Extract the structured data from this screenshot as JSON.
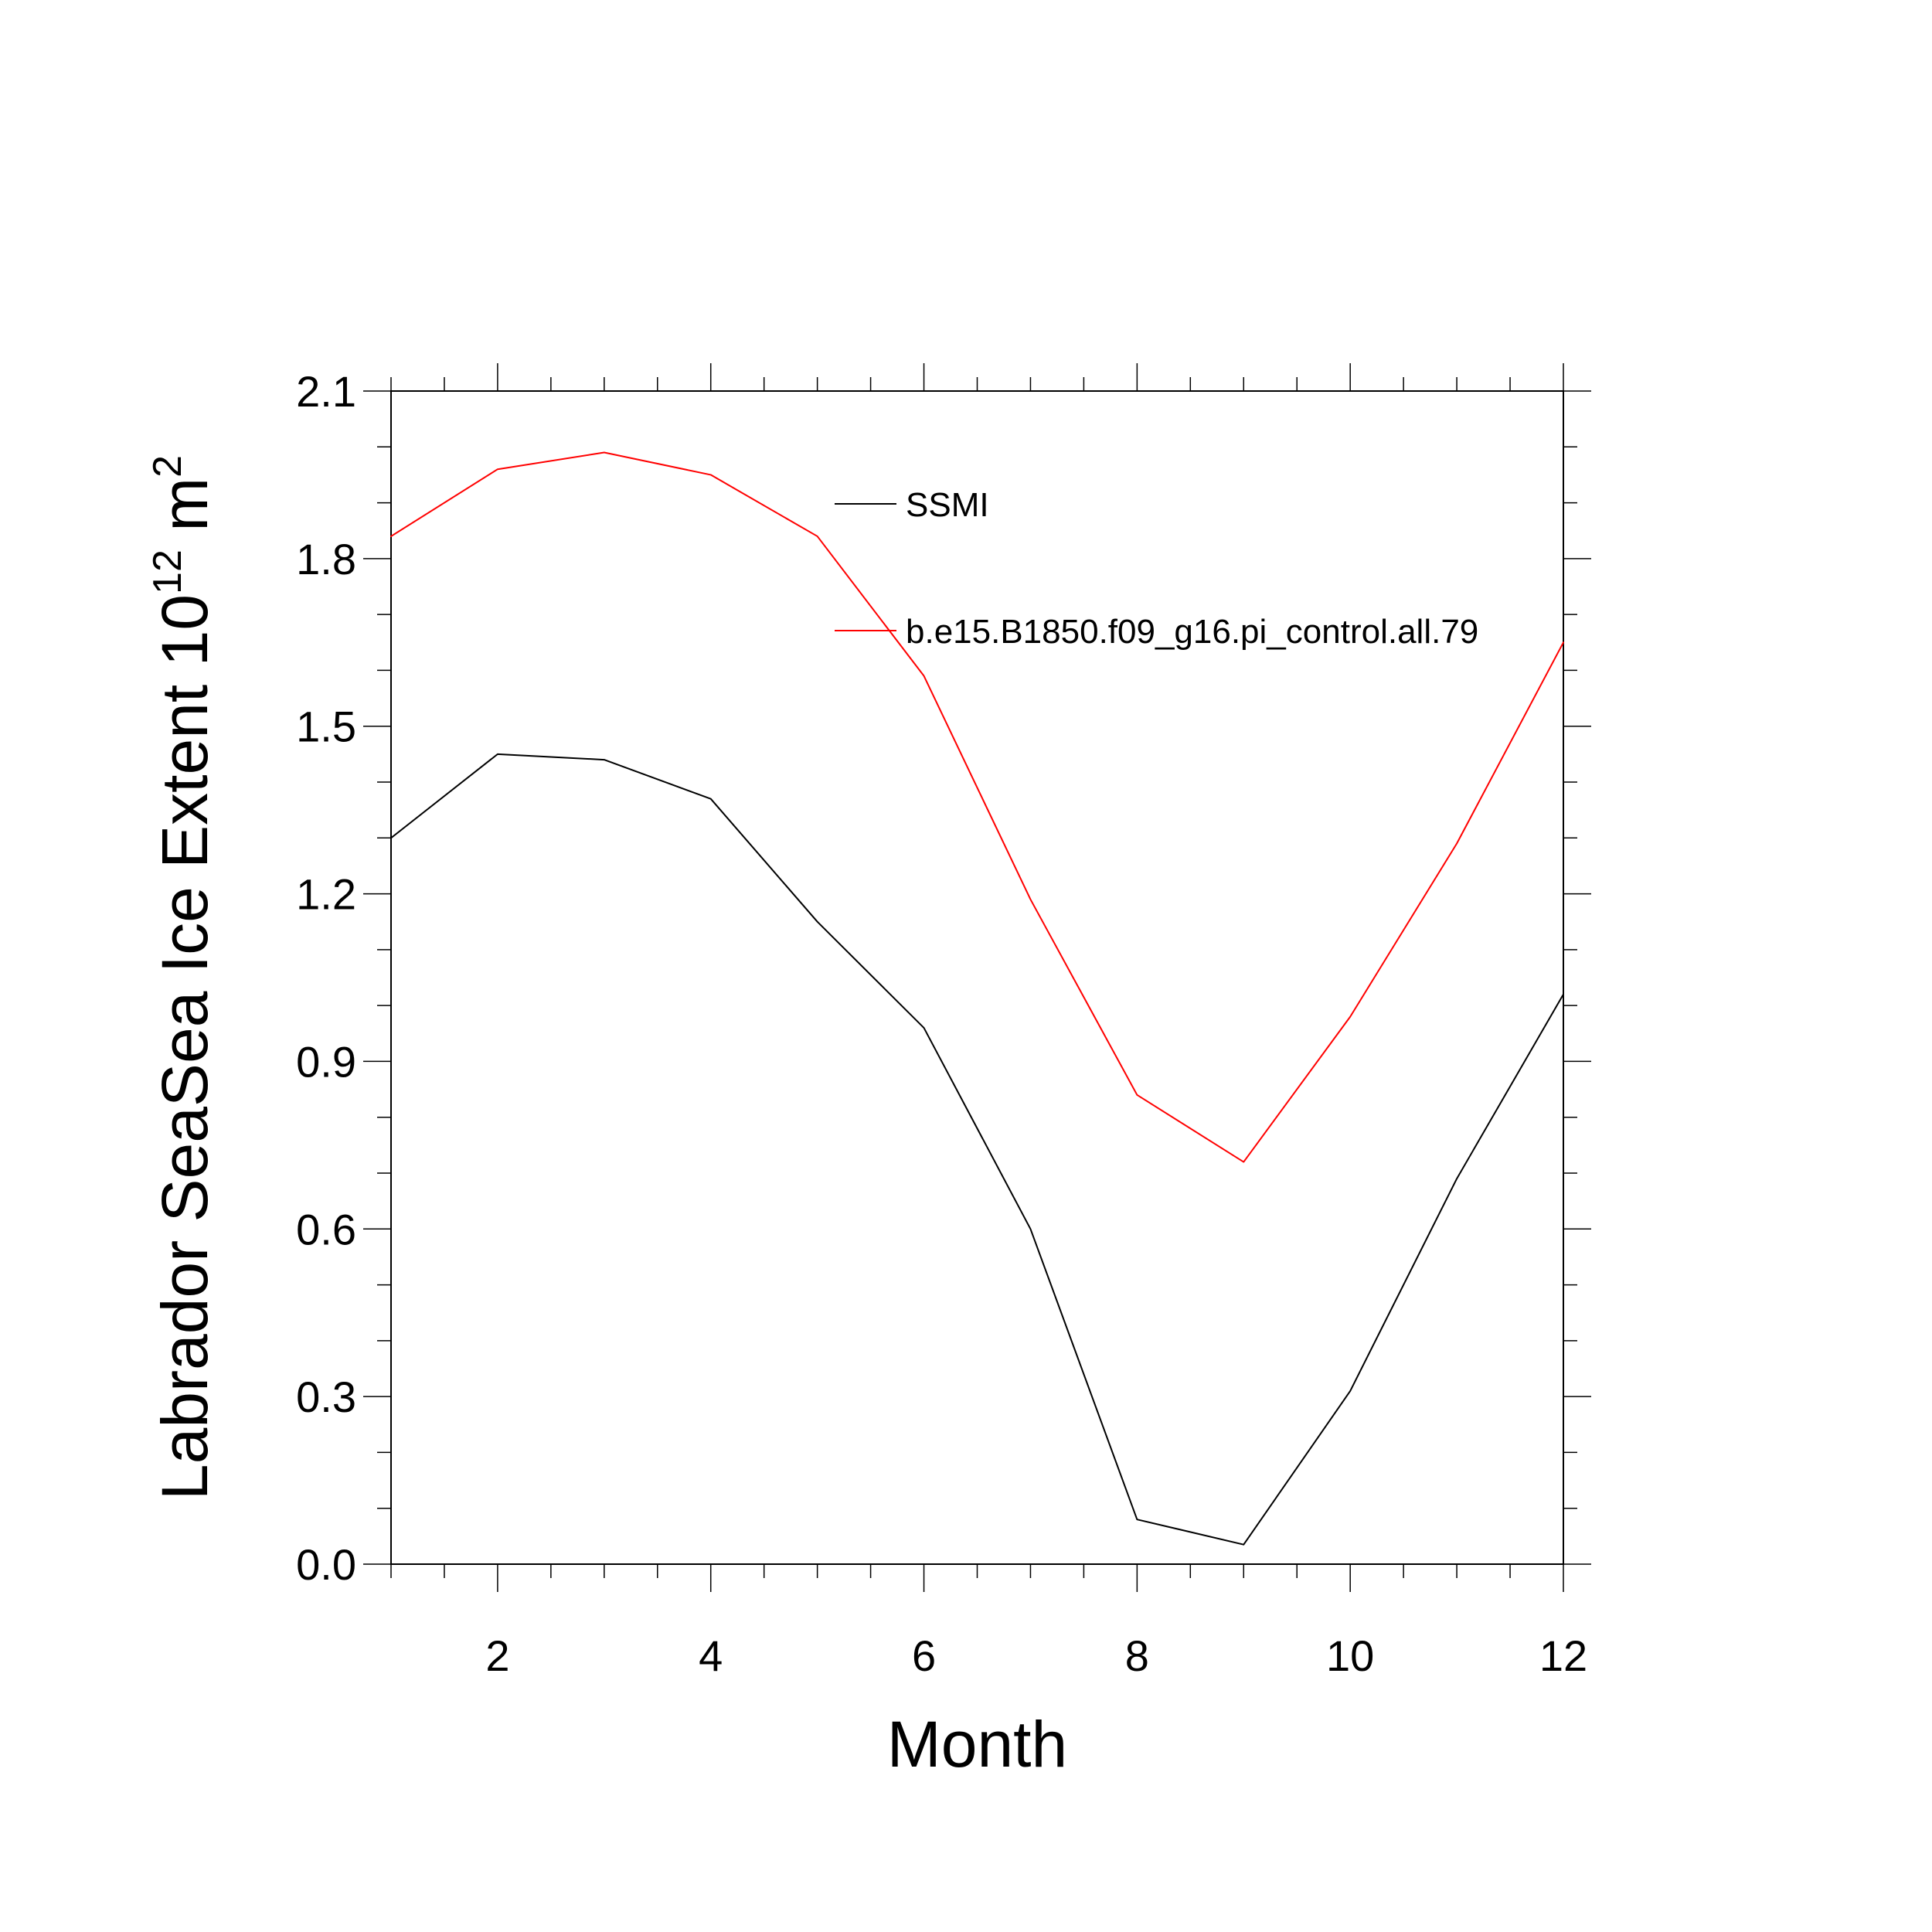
{
  "chart_data": {
    "type": "line",
    "title": "",
    "xlabel": "Month",
    "ylabel_main": "Labrador SeaSea Ice Extent 10",
    "ylabel_exp": "12",
    "ylabel_unit": " m",
    "ylabel_unit_exp": "2",
    "xlim": [
      1,
      12
    ],
    "ylim": [
      0.0,
      2.1
    ],
    "xticks": [
      2,
      4,
      6,
      8,
      10,
      12
    ],
    "xtick_labels": [
      "2",
      "4",
      "6",
      "8",
      "10",
      "12"
    ],
    "yticks": [
      0.0,
      0.3,
      0.6,
      0.9,
      1.2,
      1.5,
      1.8,
      2.1
    ],
    "ytick_labels": [
      "0.0",
      "0.3",
      "0.6",
      "0.9",
      "1.2",
      "1.5",
      "1.8",
      "2.1"
    ],
    "grid": false,
    "legend_position": "top-right",
    "x": [
      1,
      2,
      3,
      4,
      5,
      6,
      7,
      8,
      9,
      10,
      11,
      12
    ],
    "series": [
      {
        "name": "SSMI",
        "color": "#000000",
        "values": [
          1.3,
          1.45,
          1.44,
          1.37,
          1.15,
          0.96,
          0.6,
          0.08,
          0.035,
          0.31,
          0.69,
          1.02
        ]
      },
      {
        "name": "b.e15.B1850.f09_g16.pi_control.all.79",
        "color": "#ff0000",
        "values": [
          1.84,
          1.96,
          1.99,
          1.95,
          1.84,
          1.59,
          1.19,
          0.84,
          0.72,
          0.98,
          1.29,
          1.65
        ]
      }
    ]
  }
}
